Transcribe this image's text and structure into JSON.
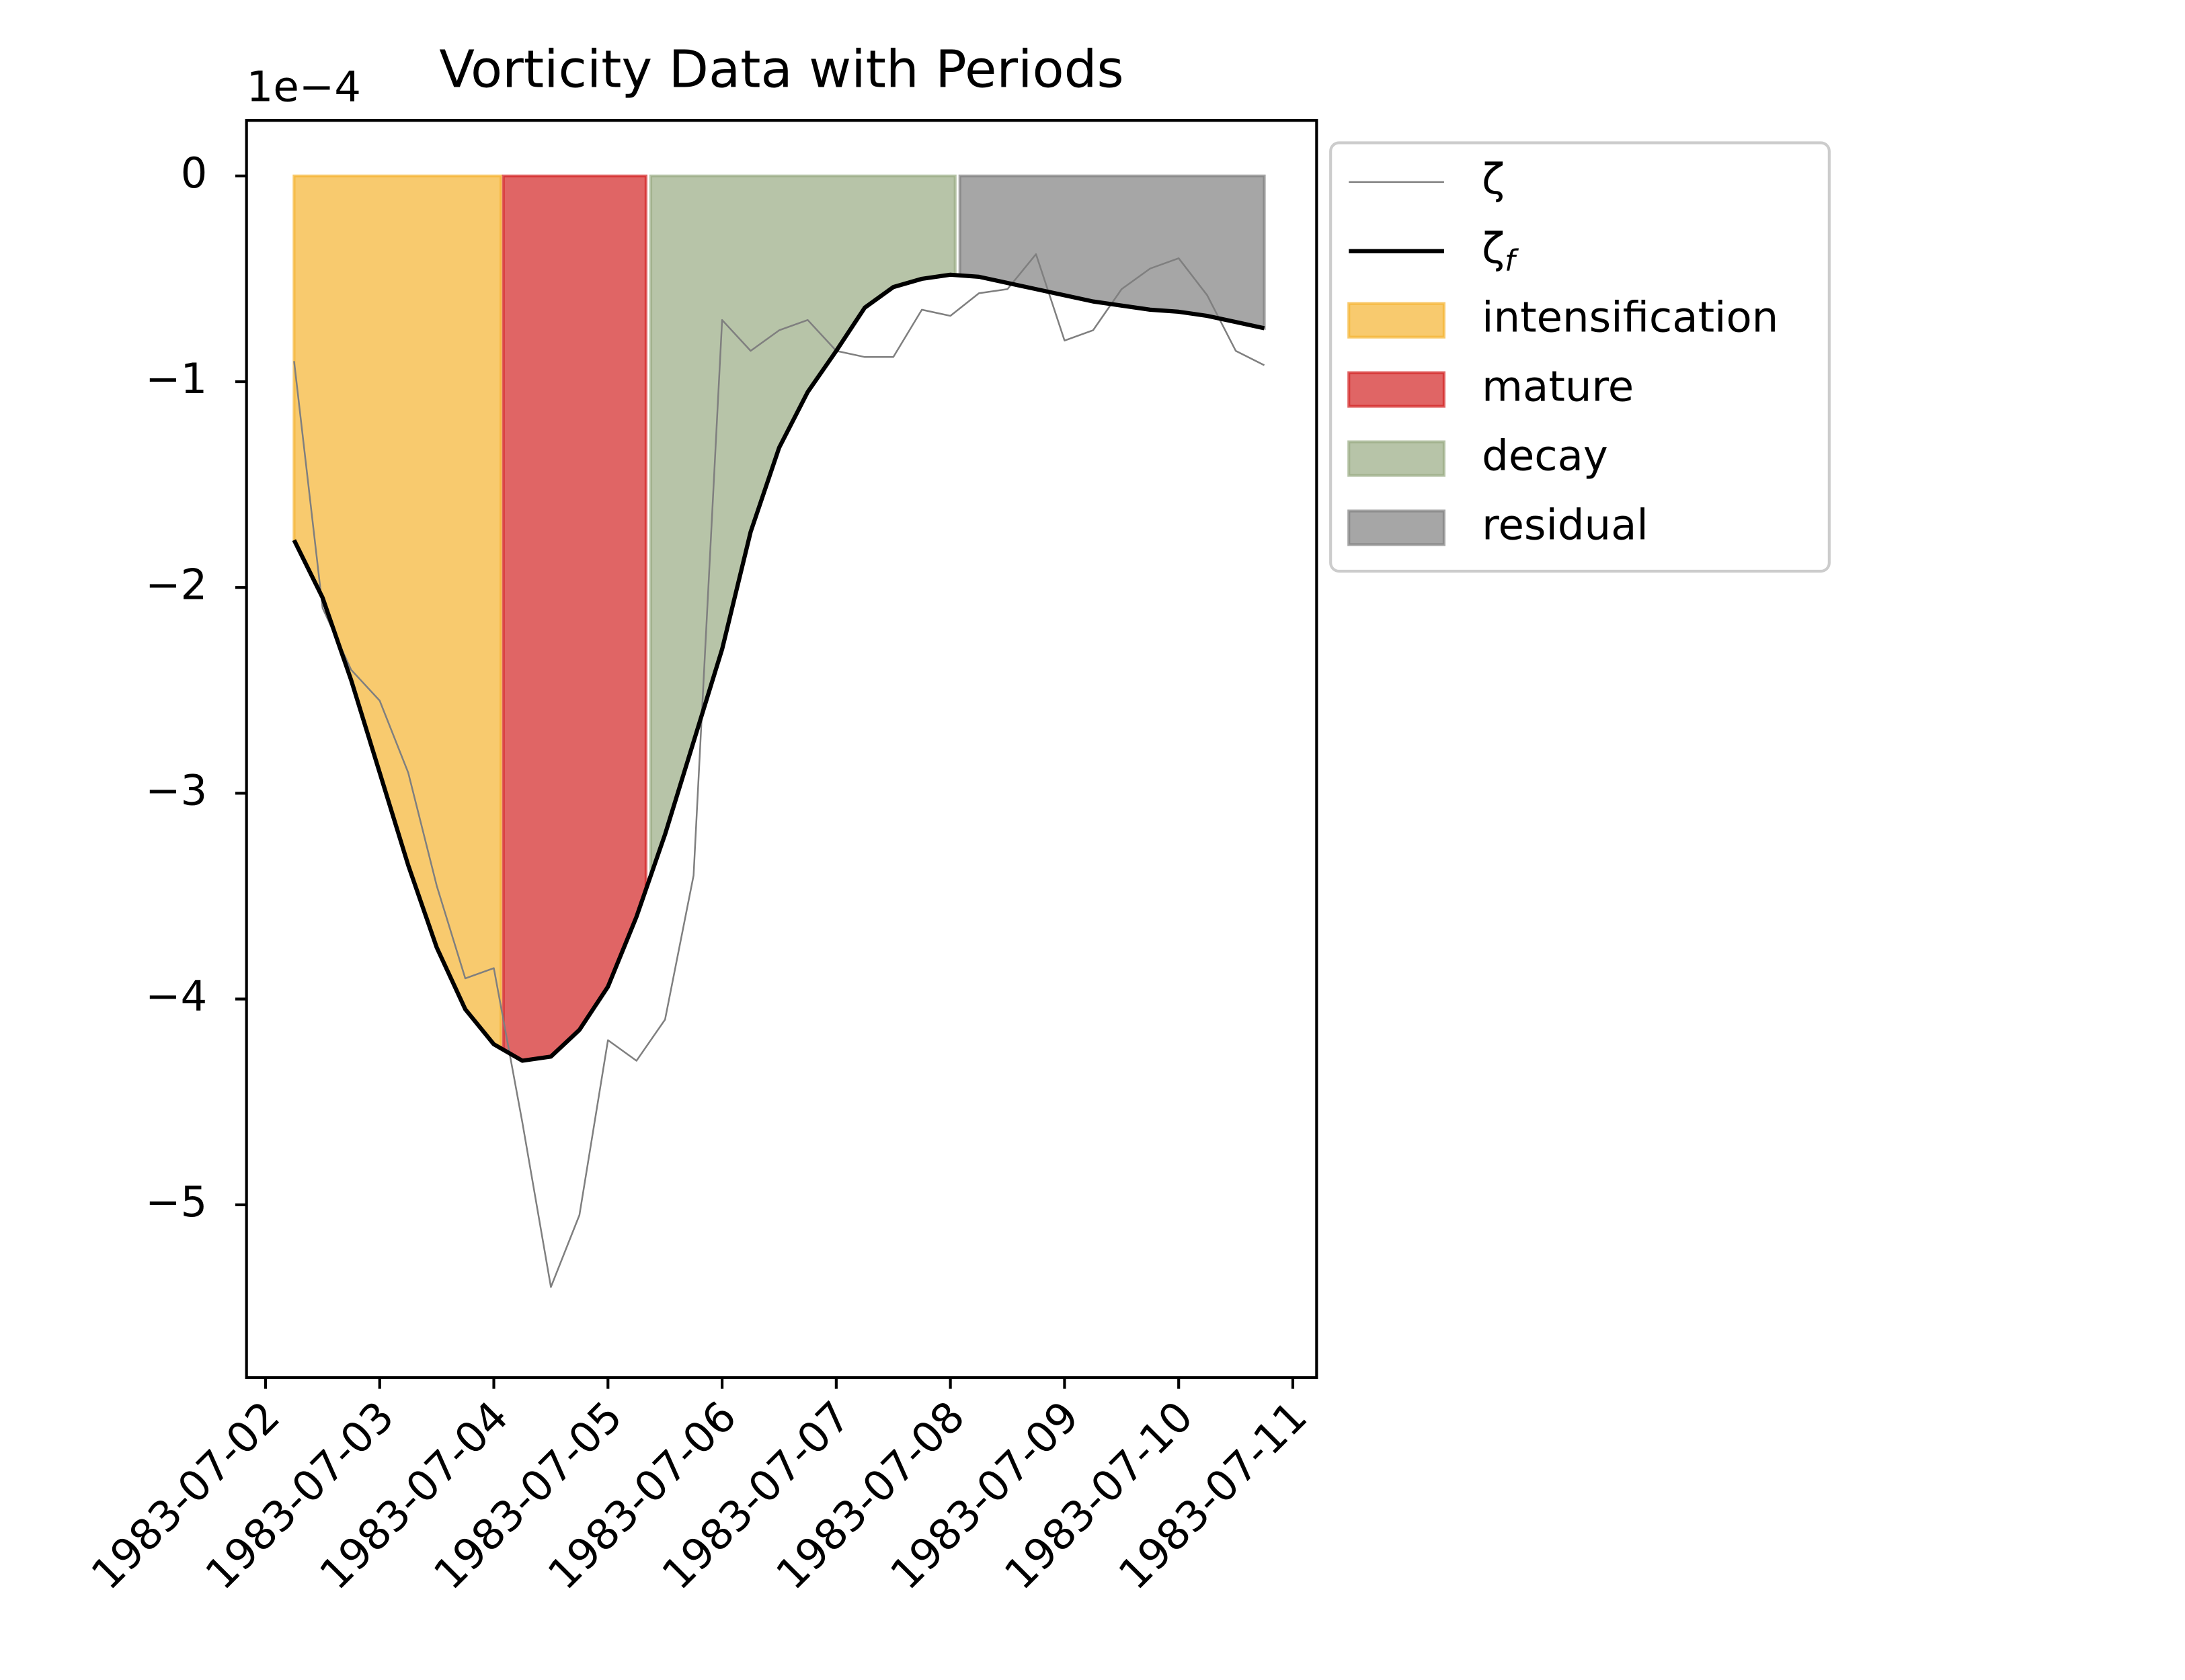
{
  "chart_data": {
    "type": "line",
    "title": "Vorticity Data with Periods",
    "y_offset_label": "1e−4",
    "x": [
      "1983-07-02T06:00",
      "1983-07-02T12:00",
      "1983-07-02T18:00",
      "1983-07-03T00:00",
      "1983-07-03T06:00",
      "1983-07-03T12:00",
      "1983-07-03T18:00",
      "1983-07-04T00:00",
      "1983-07-04T06:00",
      "1983-07-04T12:00",
      "1983-07-04T18:00",
      "1983-07-05T00:00",
      "1983-07-05T06:00",
      "1983-07-05T12:00",
      "1983-07-05T18:00",
      "1983-07-06T00:00",
      "1983-07-06T06:00",
      "1983-07-06T12:00",
      "1983-07-06T18:00",
      "1983-07-07T00:00",
      "1983-07-07T06:00",
      "1983-07-07T12:00",
      "1983-07-07T18:00",
      "1983-07-08T00:00",
      "1983-07-08T06:00",
      "1983-07-08T12:00",
      "1983-07-08T18:00",
      "1983-07-09T00:00",
      "1983-07-09T06:00",
      "1983-07-09T12:00",
      "1983-07-09T18:00",
      "1983-07-10T00:00",
      "1983-07-10T06:00",
      "1983-07-10T12:00",
      "1983-07-10T18:00"
    ],
    "series": [
      {
        "name": "ζ",
        "color": "#7f7f7f",
        "width": 1.2,
        "values": [
          -0.9,
          -2.1,
          -2.4,
          -2.55,
          -2.9,
          -3.45,
          -3.9,
          -3.85,
          -4.6,
          -5.4,
          -5.05,
          -4.2,
          -4.3,
          -4.1,
          -3.4,
          -0.7,
          -0.85,
          -0.75,
          -0.7,
          -0.85,
          -0.88,
          -0.88,
          -0.65,
          -0.68,
          -0.57,
          -0.55,
          -0.38,
          -0.8,
          -0.75,
          -0.55,
          -0.45,
          -0.4,
          -0.58,
          -0.85,
          -0.92
        ]
      },
      {
        "name": "ζ_f",
        "color": "#000000",
        "width": 3,
        "values": [
          -1.77,
          -2.05,
          -2.45,
          -2.9,
          -3.35,
          -3.75,
          -4.05,
          -4.22,
          -4.3,
          -4.28,
          -4.15,
          -3.94,
          -3.6,
          -3.2,
          -2.75,
          -2.3,
          -1.73,
          -1.32,
          -1.05,
          -0.85,
          -0.64,
          -0.54,
          -0.5,
          -0.48,
          -0.49,
          -0.52,
          -0.55,
          -0.58,
          -0.61,
          -0.63,
          -0.65,
          -0.66,
          -0.68,
          -0.71,
          -0.74
        ]
      }
    ],
    "periods": [
      {
        "name": "intensification",
        "start": "1983-07-02T06:00",
        "end": "1983-07-04T01:30",
        "color": "#f5b331"
      },
      {
        "name": "mature",
        "start": "1983-07-04T02:00",
        "end": "1983-07-05T08:00",
        "color": "#d32424"
      },
      {
        "name": "decay",
        "start": "1983-07-05T09:00",
        "end": "1983-07-08T01:00",
        "color": "#98ab83"
      },
      {
        "name": "residual",
        "start": "1983-07-08T02:00",
        "end": "1983-07-10T18:00",
        "color": "#808080"
      }
    ],
    "xlim": [
      "1983-07-01T20:00",
      "1983-07-11T05:00"
    ],
    "xticks": [
      "1983-07-02",
      "1983-07-03",
      "1983-07-04",
      "1983-07-05",
      "1983-07-06",
      "1983-07-07",
      "1983-07-08",
      "1983-07-09",
      "1983-07-10",
      "1983-07-11"
    ],
    "ylim": [
      -5.84,
      0.27
    ],
    "yticks": [
      {
        "value": -5,
        "label": "−5"
      },
      {
        "value": -4,
        "label": "−4"
      },
      {
        "value": -3,
        "label": "−3"
      },
      {
        "value": -2,
        "label": "−2"
      },
      {
        "value": -1,
        "label": "−1"
      },
      0
    ],
    "grid": false,
    "legend": "outside-upper-right"
  }
}
